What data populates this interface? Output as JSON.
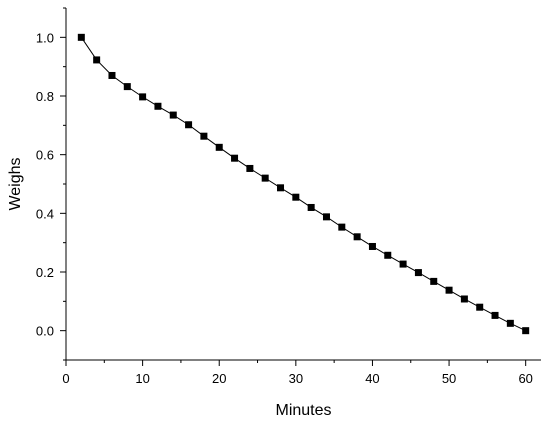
{
  "chart_data": {
    "type": "line",
    "xlabel": "Minutes",
    "ylabel": "Weighs",
    "xlim": [
      0,
      62
    ],
    "ylim": [
      -0.1,
      1.1
    ],
    "xticks": [
      0,
      10,
      20,
      30,
      40,
      50,
      60
    ],
    "yticks": [
      0.0,
      0.2,
      0.4,
      0.6,
      0.8,
      1.0
    ],
    "xtick_labels": [
      "0",
      "10",
      "20",
      "30",
      "40",
      "50",
      "60"
    ],
    "ytick_labels": [
      "0.0",
      "0.2",
      "0.4",
      "0.6",
      "0.8",
      "1.0"
    ],
    "grid": false,
    "marker": "square",
    "series": [
      {
        "x": [
          2,
          4,
          6,
          8,
          10,
          12,
          14,
          16,
          18,
          20,
          22,
          24,
          26,
          28,
          30,
          32,
          34,
          36,
          38,
          40,
          42,
          44,
          46,
          48,
          50,
          52,
          54,
          56,
          58,
          60
        ],
        "y": [
          1.0,
          0.923,
          0.87,
          0.832,
          0.797,
          0.765,
          0.735,
          0.702,
          0.663,
          0.625,
          0.588,
          0.553,
          0.52,
          0.487,
          0.455,
          0.42,
          0.388,
          0.353,
          0.32,
          0.287,
          0.257,
          0.227,
          0.198,
          0.168,
          0.138,
          0.108,
          0.08,
          0.052,
          0.025,
          0.0
        ],
        "color": "#000000"
      }
    ]
  }
}
